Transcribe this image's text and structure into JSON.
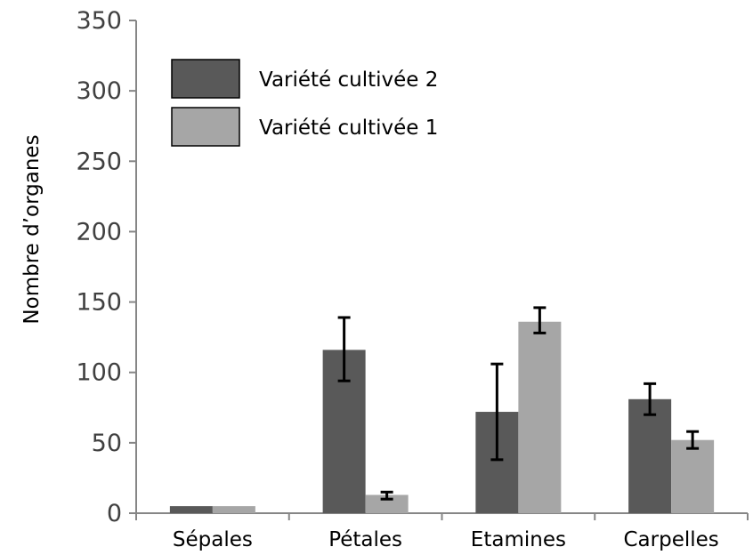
{
  "chart_data": {
    "type": "bar",
    "title": "",
    "xlabel": "",
    "ylabel": "Nombre d’organes",
    "ylim": [
      0,
      350
    ],
    "yticks": [
      0,
      50,
      100,
      150,
      200,
      250,
      300,
      350
    ],
    "categories": [
      "Sépales",
      "Pétales",
      "Etamines",
      "Carpelles"
    ],
    "series": [
      {
        "name": "Variété cultivée 2",
        "color": "#595959",
        "values": [
          5,
          116,
          72,
          81
        ],
        "error": [
          null,
          [
            94,
            139
          ],
          [
            38,
            106
          ],
          [
            70,
            92
          ]
        ]
      },
      {
        "name": "Variété cultivée 1",
        "color": "#a6a6a6",
        "values": [
          5,
          13,
          136,
          52
        ],
        "error": [
          null,
          [
            10,
            15
          ],
          [
            128,
            146
          ],
          [
            46,
            58
          ]
        ]
      }
    ],
    "legend_position": "top-left",
    "grid": false
  }
}
